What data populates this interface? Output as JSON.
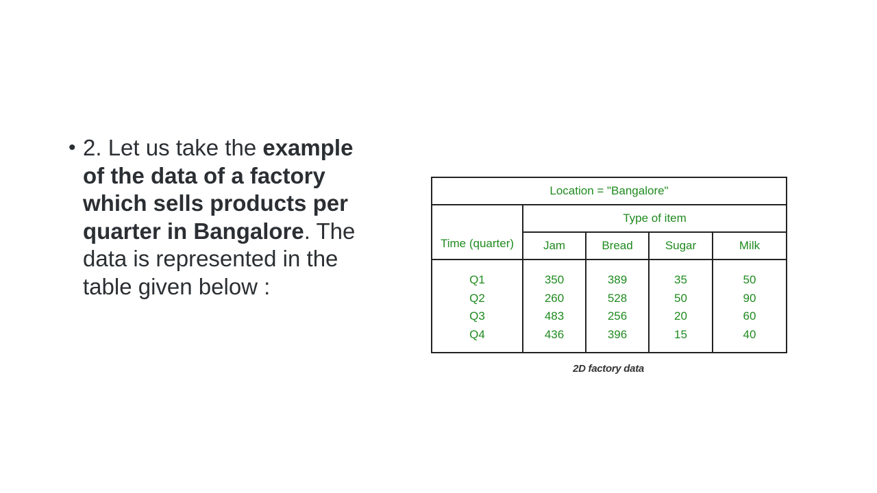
{
  "slide": {
    "bullet_symbol": "•",
    "text": {
      "prefix": "2. Let us take the ",
      "bold": "example of the data of a factory which sells products per quarter in Bangalore",
      "suffix": ". The data is represented in the table given below :"
    }
  },
  "table": {
    "location_header": "Location = \"Bangalore\"",
    "type_header": "Type of item",
    "time_header": "Time (quarter)",
    "items": [
      "Jam",
      "Bread",
      "Sugar",
      "Milk"
    ],
    "quarters": [
      "Q1",
      "Q2",
      "Q3",
      "Q4"
    ],
    "columns": {
      "jam": [
        "350",
        "260",
        "483",
        "436"
      ],
      "bread": [
        "389",
        "528",
        "256",
        "396"
      ],
      "sugar": [
        "35",
        "50",
        "20",
        "15"
      ],
      "milk": [
        "50",
        "90",
        "60",
        "40"
      ]
    },
    "caption": "2D factory data",
    "text_color": "#1f8a1f"
  }
}
